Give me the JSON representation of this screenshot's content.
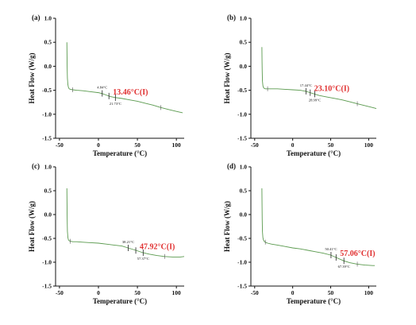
{
  "chart_data": [
    {
      "type": "line",
      "panel_label": "(a)",
      "xlabel": "Temperature (°C)",
      "ylabel": "Heat Flow (W/g)",
      "xlim": [
        -55,
        110
      ],
      "ylim": [
        -1.5,
        1.0
      ],
      "xticks": [
        -50,
        0,
        50,
        100
      ],
      "xtick_labels": [
        "-50",
        "0",
        "50",
        "100"
      ],
      "yticks": [
        1.0,
        0.5,
        0.0,
        -0.5,
        -1.0,
        -1.5
      ],
      "ytick_labels": [
        "1.0",
        "0.5",
        "0.0",
        "-0.5",
        "-1.0",
        "-1.5"
      ],
      "line_color": "#5a9a4e",
      "series": [
        {
          "x": [
            -40.5,
            -40.3,
            -40.1,
            -39.8,
            -39.2,
            -38.5,
            -37.5,
            -36,
            -33,
            -28,
            -20,
            -10,
            0,
            5,
            10,
            15,
            21,
            30,
            40,
            50,
            60,
            70,
            80,
            90,
            100,
            108
          ],
          "y": [
            0.5,
            0.2,
            -0.05,
            -0.25,
            -0.38,
            -0.44,
            -0.47,
            -0.48,
            -0.49,
            -0.5,
            -0.51,
            -0.53,
            -0.55,
            -0.57,
            -0.6,
            -0.63,
            -0.65,
            -0.67,
            -0.7,
            -0.73,
            -0.77,
            -0.81,
            -0.86,
            -0.9,
            -0.94,
            -0.97
          ]
        }
      ],
      "tg_markers": [
        {
          "x": 4.84,
          "y": -0.565
        },
        {
          "x": 13.46,
          "y": -0.62
        },
        {
          "x": 21.73,
          "y": -0.655
        }
      ],
      "annotations": [
        {
          "text": "4.84°C",
          "x": 4.84,
          "y": -0.565,
          "style": "small",
          "pos": "above"
        },
        {
          "text": "21.73°C",
          "x": 21.73,
          "y": -0.655,
          "style": "small",
          "pos": "below"
        },
        {
          "text": "13.46°C(I)",
          "x": 13.46,
          "y": -0.62,
          "style": "main",
          "pos": "right"
        }
      ],
      "annotation_color": "#e03030"
    },
    {
      "type": "line",
      "panel_label": "(b)",
      "xlabel": "Temperature (°C)",
      "ylabel": "Heat Flow (W/g)",
      "xlim": [
        -55,
        110
      ],
      "ylim": [
        -1.5,
        1.0
      ],
      "xticks": [
        -50,
        0,
        50,
        100
      ],
      "xtick_labels": [
        "-50",
        "0",
        "50",
        "100"
      ],
      "yticks": [
        1.0,
        0.5,
        0.0,
        -0.5,
        -1.0,
        -1.5
      ],
      "ytick_labels": [
        "1.0",
        "0.5",
        "0.0",
        "-0.5",
        "-1.0",
        "-1.5"
      ],
      "line_color": "#5a9a4e",
      "series": [
        {
          "x": [
            -40.5,
            -40.3,
            -40.1,
            -39.8,
            -39.2,
            -38.5,
            -37.5,
            -36,
            -33,
            -28,
            -20,
            -10,
            0,
            10,
            17,
            23,
            29,
            35,
            45,
            55,
            65,
            75,
            85,
            95,
            105,
            110
          ],
          "y": [
            0.4,
            0.1,
            -0.1,
            -0.3,
            -0.4,
            -0.44,
            -0.46,
            -0.47,
            -0.47,
            -0.47,
            -0.47,
            -0.48,
            -0.49,
            -0.5,
            -0.52,
            -0.55,
            -0.58,
            -0.61,
            -0.64,
            -0.67,
            -0.7,
            -0.74,
            -0.78,
            -0.82,
            -0.86,
            -0.88
          ]
        }
      ],
      "tg_markers": [
        {
          "x": 17.44,
          "y": -0.52
        },
        {
          "x": 23.1,
          "y": -0.55
        },
        {
          "x": 28.99,
          "y": -0.58
        }
      ],
      "annotations": [
        {
          "text": "17.44°C",
          "x": 17.44,
          "y": -0.52,
          "style": "small",
          "pos": "above"
        },
        {
          "text": "28.99°C",
          "x": 28.99,
          "y": -0.58,
          "style": "small",
          "pos": "below"
        },
        {
          "text": "23.10°C(I)",
          "x": 23.1,
          "y": -0.55,
          "style": "main",
          "pos": "right"
        }
      ],
      "annotation_color": "#e03030"
    },
    {
      "type": "line",
      "panel_label": "(c)",
      "xlabel": "Temperature (°C)",
      "ylabel": "Heat Flow (W/g)",
      "xlim": [
        -55,
        110
      ],
      "ylim": [
        -1.5,
        1.0
      ],
      "xticks": [
        -50,
        0,
        50,
        100
      ],
      "xtick_labels": [
        "-50",
        "0",
        "50",
        "100"
      ],
      "yticks": [
        1.0,
        0.5,
        0.0,
        -0.5,
        -1.0,
        -1.5
      ],
      "ytick_labels": [
        "1.0",
        "0.5",
        "0.0",
        "-0.5",
        "-1.0",
        "-1.5"
      ],
      "line_color": "#5a9a4e",
      "series": [
        {
          "x": [
            -40.5,
            -40.3,
            -40.1,
            -39.8,
            -39.2,
            -38.5,
            -37.5,
            -36,
            -33,
            -28,
            -20,
            -10,
            0,
            10,
            20,
            30,
            38,
            48,
            57,
            65,
            75,
            85,
            95,
            105,
            110
          ],
          "y": [
            0.55,
            0.2,
            -0.1,
            -0.35,
            -0.48,
            -0.53,
            -0.55,
            -0.56,
            -0.57,
            -0.57,
            -0.58,
            -0.59,
            -0.6,
            -0.62,
            -0.64,
            -0.66,
            -0.7,
            -0.75,
            -0.8,
            -0.83,
            -0.86,
            -0.88,
            -0.89,
            -0.89,
            -0.88
          ]
        }
      ],
      "tg_markers": [
        {
          "x": 38.21,
          "y": -0.7
        },
        {
          "x": 47.92,
          "y": -0.755
        },
        {
          "x": 57.37,
          "y": -0.8
        }
      ],
      "annotations": [
        {
          "text": "38.21°C",
          "x": 38.21,
          "y": -0.7,
          "style": "small",
          "pos": "above"
        },
        {
          "text": "57.37°C",
          "x": 57.37,
          "y": -0.8,
          "style": "small",
          "pos": "below"
        },
        {
          "text": "47.92°C(I)",
          "x": 47.92,
          "y": -0.755,
          "style": "main",
          "pos": "right"
        }
      ],
      "annotation_color": "#e03030"
    },
    {
      "type": "line",
      "panel_label": "(d)",
      "xlabel": "Temperature (°C)",
      "ylabel": "Heat Flow (W/g)",
      "xlim": [
        -55,
        110
      ],
      "ylim": [
        -1.5,
        1.0
      ],
      "xticks": [
        -50,
        0,
        50,
        100
      ],
      "xtick_labels": [
        "-50",
        "0",
        "50",
        "100"
      ],
      "yticks": [
        1.0,
        0.5,
        0.0,
        -0.5,
        -1.0,
        -1.5
      ],
      "ytick_labels": [
        "1.0",
        "0.5",
        "0.0",
        "-0.5",
        "-1.0",
        "-1.5"
      ],
      "line_color": "#5a9a4e",
      "series": [
        {
          "x": [
            -40.5,
            -40.3,
            -40.1,
            -39.8,
            -39.2,
            -38.5,
            -37.5,
            -36,
            -33,
            -28,
            -20,
            -10,
            0,
            10,
            20,
            30,
            40,
            50,
            57,
            67,
            75,
            85,
            95,
            105,
            108
          ],
          "y": [
            0.55,
            0.2,
            -0.1,
            -0.35,
            -0.48,
            -0.53,
            -0.56,
            -0.58,
            -0.6,
            -0.62,
            -0.64,
            -0.67,
            -0.7,
            -0.72,
            -0.75,
            -0.78,
            -0.81,
            -0.85,
            -0.9,
            -0.97,
            -1.01,
            -1.04,
            -1.06,
            -1.07,
            -1.07
          ]
        }
      ],
      "tg_markers": [
        {
          "x": 50.41,
          "y": -0.85
        },
        {
          "x": 57.06,
          "y": -0.9
        },
        {
          "x": 67.39,
          "y": -0.97
        }
      ],
      "annotations": [
        {
          "text": "50.41°C",
          "x": 50.41,
          "y": -0.85,
          "style": "small",
          "pos": "above"
        },
        {
          "text": "67.39°C",
          "x": 67.39,
          "y": -0.97,
          "style": "small",
          "pos": "below"
        },
        {
          "text": "57.06°C(I)",
          "x": 57.06,
          "y": -0.9,
          "style": "main",
          "pos": "right"
        }
      ],
      "annotation_color": "#e03030"
    }
  ]
}
